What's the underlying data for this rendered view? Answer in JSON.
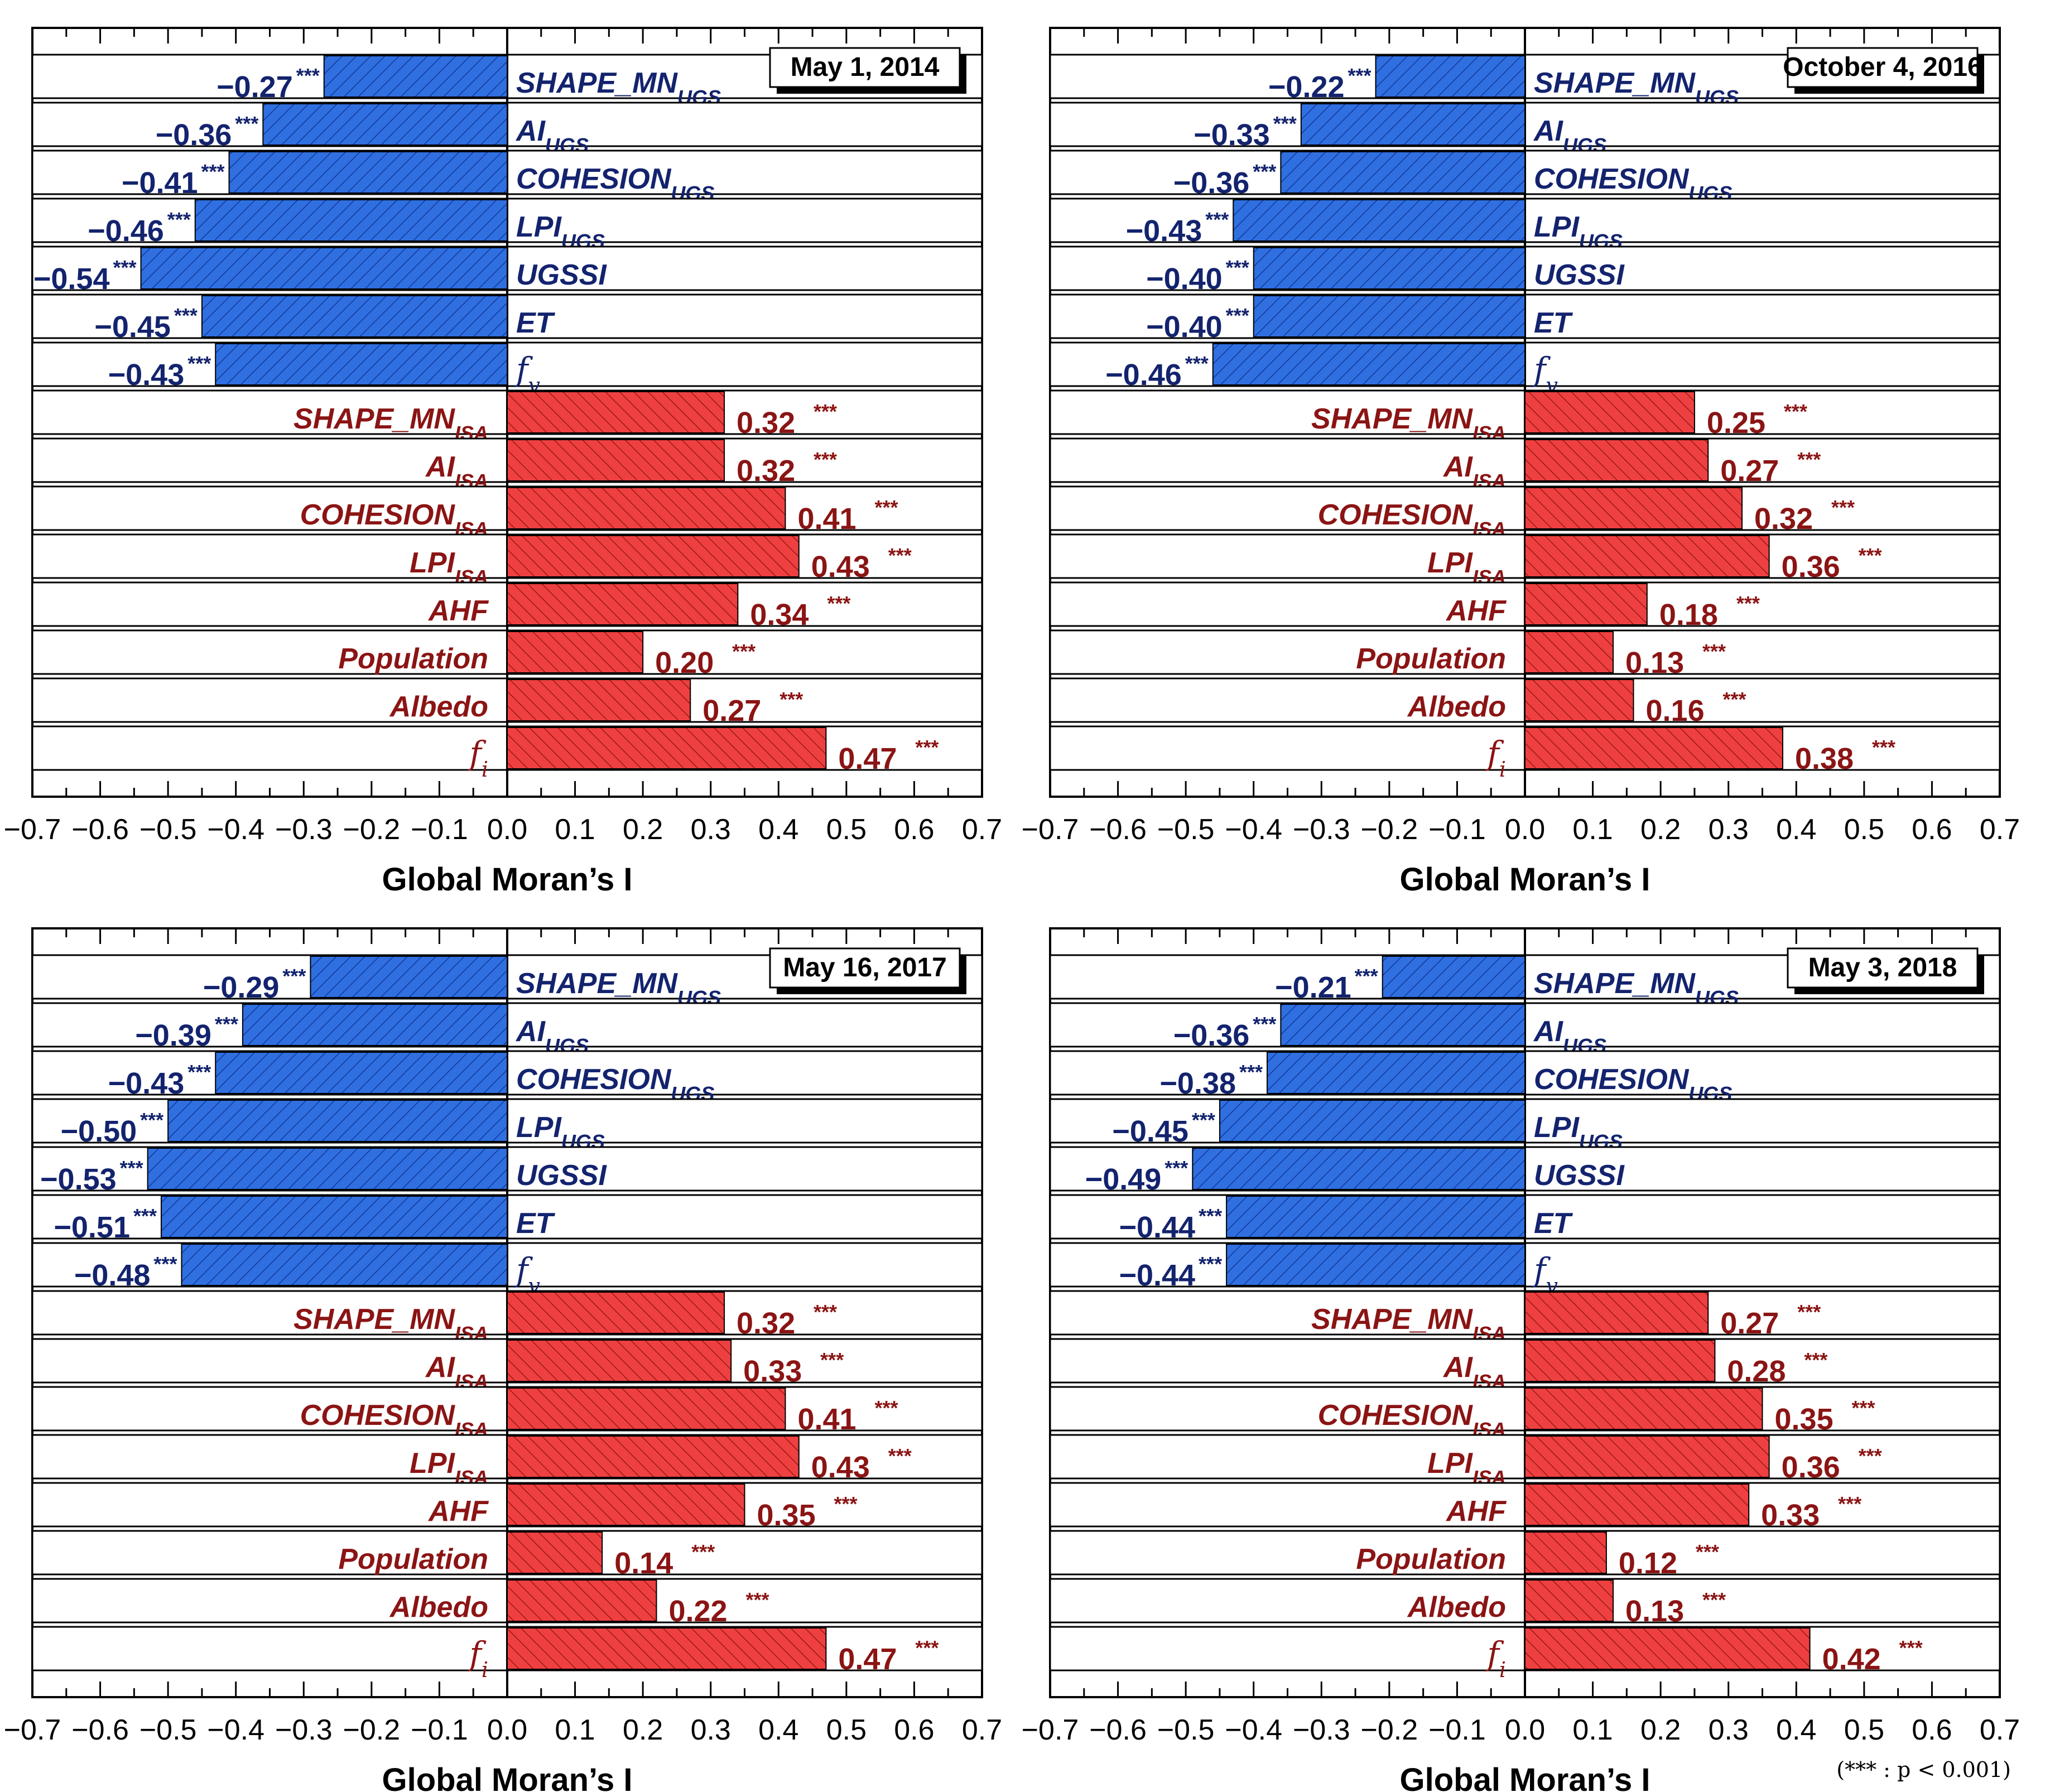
{
  "footnote": "(*** : p < 0.001)",
  "chart_data": [
    {
      "type": "bar",
      "date_label": "May 1, 2014",
      "xlabel": "Global Moran’s I",
      "xlim": [
        -0.7,
        0.7
      ],
      "xticks": [
        "−0.7",
        "−0.6",
        "−0.5",
        "−0.4",
        "−0.3",
        "−0.2",
        "−0.1",
        "0.0",
        "0.1",
        "0.2",
        "0.3",
        "0.4",
        "0.5",
        "0.6",
        "0.7"
      ],
      "significance": "***",
      "categories": [
        "SHAPE_MN_UGS",
        "AI_UGS",
        "COHESION_UGS",
        "LPI_UGS",
        "UGSSI",
        "ET",
        "f_v",
        "SHAPE_MN_ISA",
        "AI_ISA",
        "COHESION_ISA",
        "LPI_ISA",
        "AHF",
        "Population",
        "Albedo",
        "f_i"
      ],
      "values": [
        -0.27,
        -0.36,
        -0.41,
        -0.46,
        -0.54,
        -0.45,
        -0.43,
        0.32,
        0.32,
        0.41,
        0.43,
        0.34,
        0.2,
        0.27,
        0.47
      ],
      "value_labels": [
        "−0.27",
        "−0.36",
        "−0.41",
        "−0.46",
        "−0.54",
        "−0.45",
        "−0.43",
        "0.32",
        "0.32",
        "0.41",
        "0.43",
        "0.34",
        "0.20",
        "0.27",
        "0.47"
      ]
    },
    {
      "type": "bar",
      "date_label": "October 4, 2016",
      "xlabel": "Global Moran’s I",
      "xlim": [
        -0.7,
        0.7
      ],
      "xticks": [
        "−0.7",
        "−0.6",
        "−0.5",
        "−0.4",
        "−0.3",
        "−0.2",
        "−0.1",
        "0.0",
        "0.1",
        "0.2",
        "0.3",
        "0.4",
        "0.5",
        "0.6",
        "0.7"
      ],
      "significance": "***",
      "categories": [
        "SHAPE_MN_UGS",
        "AI_UGS",
        "COHESION_UGS",
        "LPI_UGS",
        "UGSSI",
        "ET",
        "f_v",
        "SHAPE_MN_ISA",
        "AI_ISA",
        "COHESION_ISA",
        "LPI_ISA",
        "AHF",
        "Population",
        "Albedo",
        "f_i"
      ],
      "values": [
        -0.22,
        -0.33,
        -0.36,
        -0.43,
        -0.4,
        -0.4,
        -0.46,
        0.25,
        0.27,
        0.32,
        0.36,
        0.18,
        0.13,
        0.16,
        0.38
      ],
      "value_labels": [
        "−0.22",
        "−0.33",
        "−0.36",
        "−0.43",
        "−0.40",
        "−0.40",
        "−0.46",
        "0.25",
        "0.27",
        "0.32",
        "0.36",
        "0.18",
        "0.13",
        "0.16",
        "0.38"
      ]
    },
    {
      "type": "bar",
      "date_label": "May 16, 2017",
      "xlabel": "Global Moran’s I",
      "xlim": [
        -0.7,
        0.7
      ],
      "xticks": [
        "−0.7",
        "−0.6",
        "−0.5",
        "−0.4",
        "−0.3",
        "−0.2",
        "−0.1",
        "0.0",
        "0.1",
        "0.2",
        "0.3",
        "0.4",
        "0.5",
        "0.6",
        "0.7"
      ],
      "significance": "***",
      "categories": [
        "SHAPE_MN_UGS",
        "AI_UGS",
        "COHESION_UGS",
        "LPI_UGS",
        "UGSSI",
        "ET",
        "f_v",
        "SHAPE_MN_ISA",
        "AI_ISA",
        "COHESION_ISA",
        "LPI_ISA",
        "AHF",
        "Population",
        "Albedo",
        "f_i"
      ],
      "values": [
        -0.29,
        -0.39,
        -0.43,
        -0.5,
        -0.53,
        -0.51,
        -0.48,
        0.32,
        0.33,
        0.41,
        0.43,
        0.35,
        0.14,
        0.22,
        0.47
      ],
      "value_labels": [
        "−0.29",
        "−0.39",
        "−0.43",
        "−0.50",
        "−0.53",
        "−0.51",
        "−0.48",
        "0.32",
        "0.33",
        "0.41",
        "0.43",
        "0.35",
        "0.14",
        "0.22",
        "0.47"
      ]
    },
    {
      "type": "bar",
      "date_label": "May 3, 2018",
      "xlabel": "Global Moran’s I",
      "xlim": [
        -0.7,
        0.7
      ],
      "xticks": [
        "−0.7",
        "−0.6",
        "−0.5",
        "−0.4",
        "−0.3",
        "−0.2",
        "−0.1",
        "0.0",
        "0.1",
        "0.2",
        "0.3",
        "0.4",
        "0.5",
        "0.6",
        "0.7"
      ],
      "significance": "***",
      "categories": [
        "SHAPE_MN_UGS",
        "AI_UGS",
        "COHESION_UGS",
        "LPI_UGS",
        "UGSSI",
        "ET",
        "f_v",
        "SHAPE_MN_ISA",
        "AI_ISA",
        "COHESION_ISA",
        "LPI_ISA",
        "AHF",
        "Population",
        "Albedo",
        "f_i"
      ],
      "values": [
        -0.21,
        -0.36,
        -0.38,
        -0.45,
        -0.49,
        -0.44,
        -0.44,
        0.27,
        0.28,
        0.35,
        0.36,
        0.33,
        0.12,
        0.13,
        0.42
      ],
      "value_labels": [
        "−0.21",
        "−0.36",
        "−0.38",
        "−0.45",
        "−0.49",
        "−0.44",
        "−0.44",
        "0.27",
        "0.28",
        "0.35",
        "0.36",
        "0.33",
        "0.12",
        "0.13",
        "0.42"
      ]
    }
  ],
  "colors": {
    "negative_fill": "#2f6fe0",
    "positive_fill": "#ee4040",
    "negative_text": "#13236e",
    "positive_text": "#8b1414",
    "axis": "#000000"
  }
}
